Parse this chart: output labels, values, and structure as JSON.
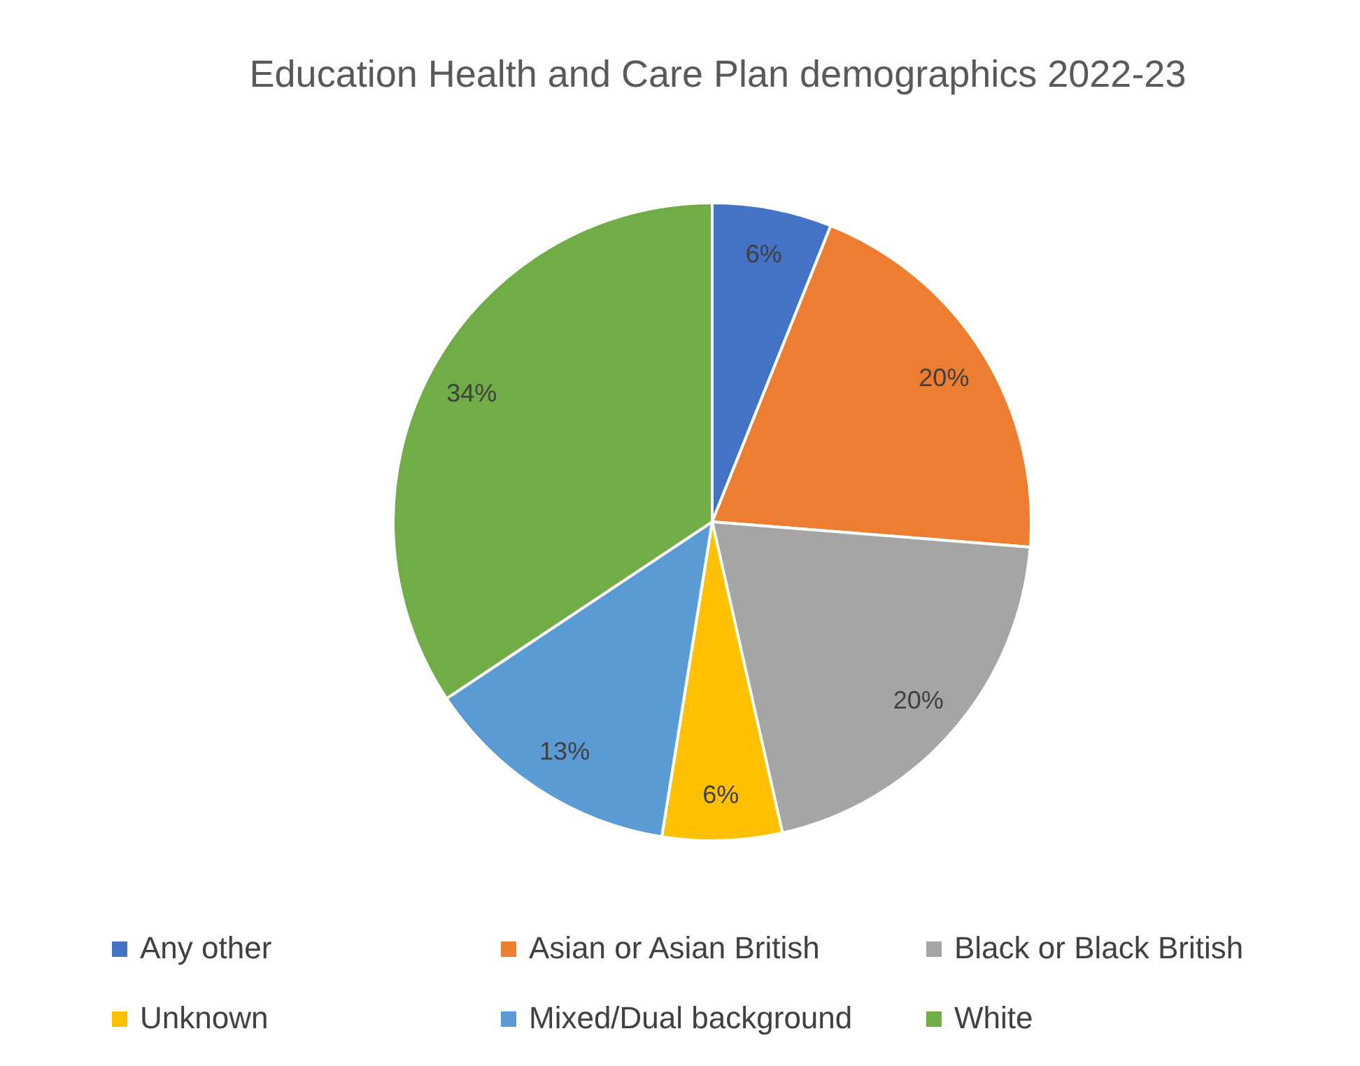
{
  "chart_data": {
    "type": "pie",
    "title": "Education Health and Care Plan demographics 2022-23",
    "categories": [
      "Any other",
      "Asian or Asian British",
      "Black or Black British",
      "Unknown",
      "Mixed/Dual background",
      "White"
    ],
    "values": [
      6,
      20,
      20,
      6,
      13,
      34
    ],
    "colors": [
      "#4472c4",
      "#ed7d31",
      "#a5a5a5",
      "#ffc000",
      "#5b9bd5",
      "#70ad47"
    ],
    "value_labels": [
      "6%",
      "20%",
      "20%",
      "6%",
      "13%",
      "34%"
    ],
    "legend": "bottom"
  }
}
